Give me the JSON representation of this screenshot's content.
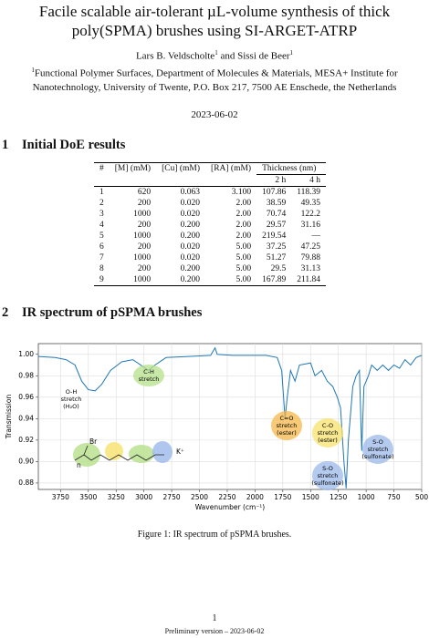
{
  "header": {
    "title": "Facile scalable air-tolerant µL-volume synthesis of thick poly(SPMA) brushes using SI-ARGET-ATRP",
    "authors": [
      {
        "name": "Lars B. Veldscholte",
        "mark": "1"
      },
      {
        "name": "Sissi de Beer",
        "mark": "1"
      }
    ],
    "author_joiner": "and",
    "affiliation": {
      "mark": "1",
      "text": "Functional Polymer Surfaces, Department of Molecules & Materials, MESA+ Institute for Nanotechnology, University of Twente, P.O. Box 217, 7500 AE Enschede, the Netherlands"
    },
    "date": "2023-06-02"
  },
  "sections": [
    {
      "number": "1",
      "title": "Initial DoE results"
    },
    {
      "number": "2",
      "title": "IR spectrum of pSPMA brushes"
    }
  ],
  "table": {
    "header": [
      "#",
      "[M] (mM)",
      "[Cu] (mM)",
      "[RA] (mM)",
      "Thickness (nm)"
    ],
    "subheader": [
      "2 h",
      "4 h"
    ],
    "rows": [
      [
        "1",
        "620",
        "0.063",
        "3.100",
        "107.86",
        "118.39"
      ],
      [
        "2",
        "200",
        "0.020",
        "2.00",
        "38.59",
        "49.35"
      ],
      [
        "3",
        "1000",
        "0.020",
        "2.00",
        "70.74",
        "122.2"
      ],
      [
        "4",
        "200",
        "0.200",
        "2.00",
        "29.57",
        "31.16"
      ],
      [
        "5",
        "1000",
        "0.200",
        "2.00",
        "219.54",
        "—"
      ],
      [
        "6",
        "200",
        "0.020",
        "5.00",
        "37.25",
        "47.25"
      ],
      [
        "7",
        "1000",
        "0.020",
        "5.00",
        "51.27",
        "79.88"
      ],
      [
        "8",
        "200",
        "0.200",
        "5.00",
        "29.5",
        "31.13"
      ],
      [
        "9",
        "1000",
        "0.200",
        "5.00",
        "167.89",
        "211.84"
      ]
    ]
  },
  "chart_data": {
    "type": "line",
    "x_label": "Wavenumber (cm⁻¹)",
    "y_label": "Transmission",
    "grid": true,
    "xlim": [
      3950,
      500
    ],
    "ylim": [
      0.874,
      1.01
    ],
    "xticks": [
      3750,
      3500,
      3250,
      3000,
      2750,
      2500,
      2250,
      2000,
      1750,
      1500,
      1250,
      1000,
      750,
      500
    ],
    "yticks": [
      0.88,
      {
        "value": 0.9,
        "label": "0.90"
      },
      0.92,
      0.94,
      0.96,
      0.98,
      {
        "value": 1,
        "label": "1.00"
      }
    ],
    "series": [
      {
        "color": "#1f77b4",
        "x": [
          3950,
          3800,
          3700,
          3620,
          3560,
          3500,
          3440,
          3380,
          3300,
          3200,
          3100,
          3000,
          2960,
          2900,
          2800,
          2600,
          2400,
          2360,
          2340,
          2200,
          2000,
          1900,
          1800,
          1760,
          1730,
          1710,
          1680,
          1640,
          1600,
          1500,
          1460,
          1400,
          1350,
          1300,
          1260,
          1230,
          1200,
          1180,
          1160,
          1120,
          1090,
          1060,
          1040,
          1020,
          980,
          950,
          900,
          850,
          800,
          750,
          700,
          650,
          600,
          550,
          500
        ],
        "values": [
          0.998,
          0.997,
          0.995,
          0.99,
          0.975,
          0.967,
          0.966,
          0.972,
          0.985,
          0.993,
          0.995,
          0.988,
          0.985,
          0.99,
          0.997,
          0.998,
          0.999,
          1.006,
          1.0,
          0.999,
          0.999,
          0.999,
          0.997,
          0.985,
          0.94,
          0.96,
          0.985,
          0.975,
          0.99,
          0.992,
          0.98,
          0.985,
          0.975,
          0.97,
          0.96,
          0.95,
          0.9,
          0.875,
          0.92,
          0.97,
          0.98,
          0.985,
          0.91,
          0.97,
          0.98,
          0.99,
          0.985,
          0.99,
          0.985,
          0.99,
          0.987,
          0.995,
          0.99,
          0.997,
          0.999
        ]
      }
    ],
    "annotations": [
      {
        "lines": [
          "O-H",
          "stretch",
          "(H₂O)"
        ]
      },
      {
        "lines": [
          "C-H",
          "stretch"
        ],
        "color": "#b5e08a"
      },
      {
        "lines": [
          "C=O",
          "stretch",
          "(ester)"
        ],
        "color": "#f5b84a"
      },
      {
        "lines": [
          "C-O",
          "stretch",
          "(ester)"
        ],
        "color": "#f7e26b"
      },
      {
        "lines": [
          "S-O",
          "stretch",
          "(sulfonate)"
        ],
        "color": "#9bb8ea"
      },
      {
        "lines": [
          "S-O",
          "stretch",
          "(sulfonate)"
        ],
        "color": "#9bb8ea"
      }
    ],
    "molecule_labels": [
      "Br",
      "n",
      "K⁺"
    ]
  },
  "figure": {
    "caption": "Figure 1: IR spectrum of pSPMA brushes."
  },
  "footer": {
    "page": "1",
    "note": "Preliminary version – 2023-06-02"
  }
}
